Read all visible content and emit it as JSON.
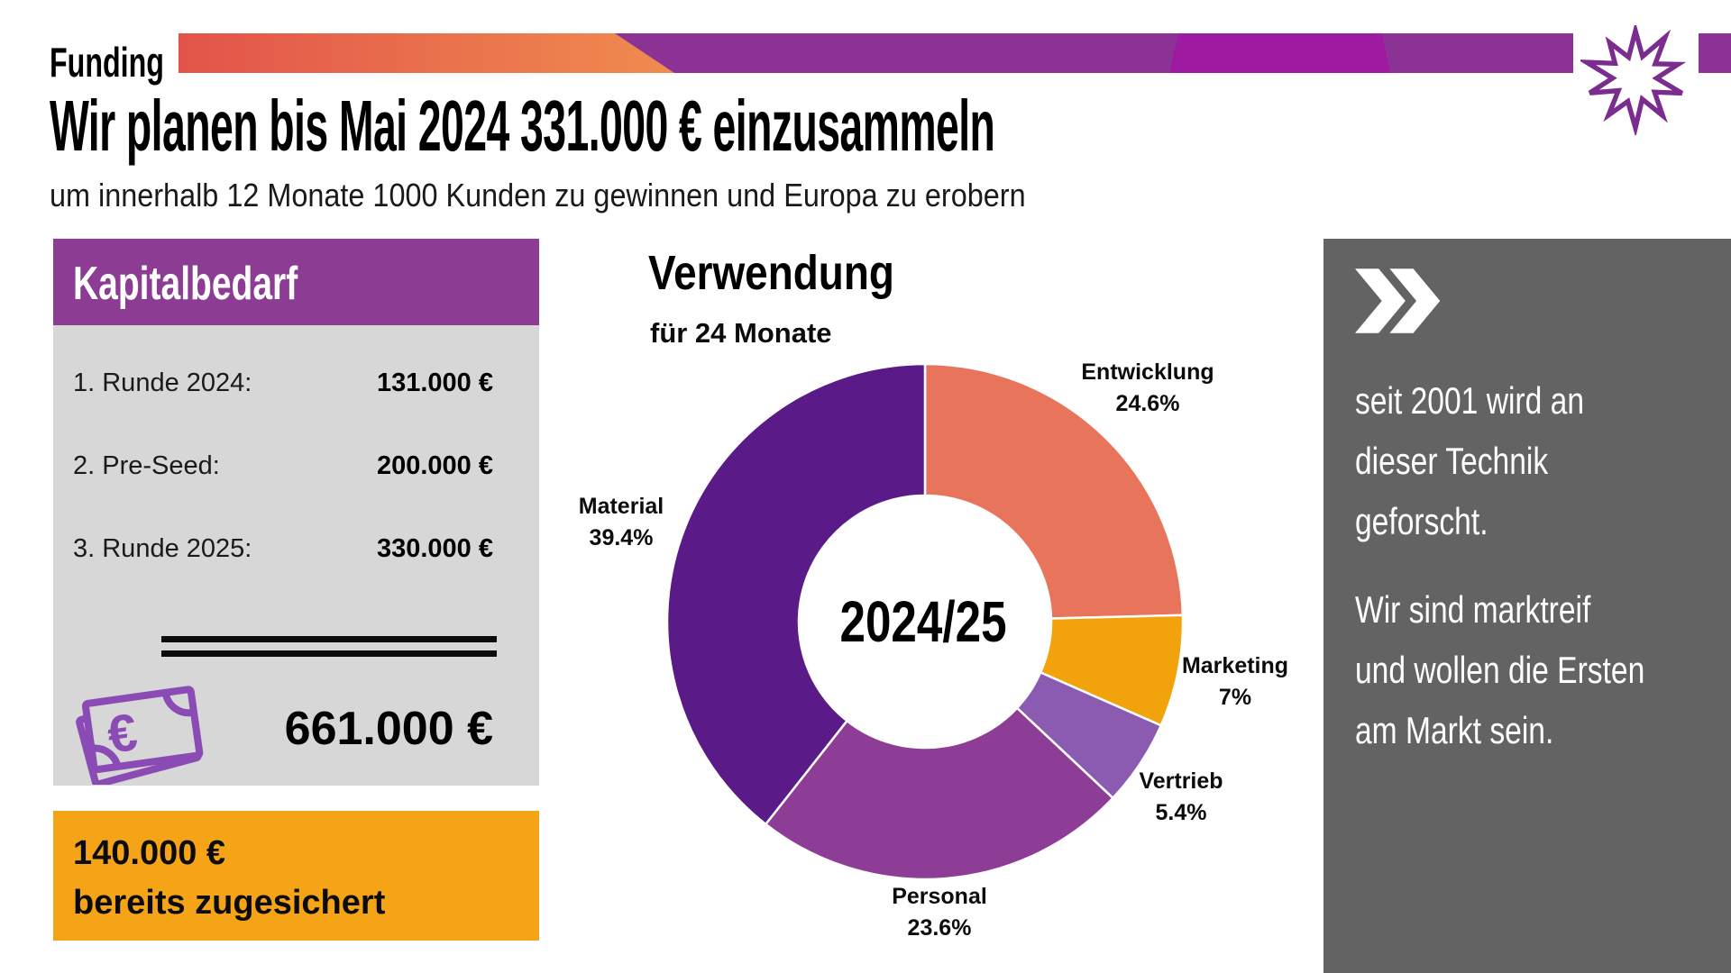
{
  "page": {
    "kicker": "Funding",
    "title": "Wir planen bis Mai 2024 331.000 € einzusammeln",
    "subtitle": "um innerhalb 12 Monate 1000 Kunden zu gewinnen und Europa zu erobern"
  },
  "capital_panel": {
    "title": "Kapitalbedarf",
    "rows": [
      {
        "label": "1. Runde 2024:",
        "value": "131.000 €"
      },
      {
        "label": "2. Pre-Seed:",
        "value": "200.000 €"
      },
      {
        "label": "3. Runde 2025:",
        "value": "330.000 €"
      }
    ],
    "total_value": "661.000 €",
    "header_color": "#8C3D93",
    "body_color": "#D7D7D7"
  },
  "secured_box": {
    "amount": "140.000 €",
    "caption": "bereits zugesichert",
    "background": "#F5A418"
  },
  "chart_data": {
    "type": "pie",
    "variant": "donut",
    "title": "Verwendung",
    "subtitle": "für 24 Monate",
    "center_label": "2024/25",
    "start_angle_deg": 0,
    "direction": "clockwise",
    "legend_position": "outside-labels",
    "segments": [
      {
        "label": "Entwicklung",
        "value": 24.6,
        "pct_label": "24.6%",
        "color": "#E9745C"
      },
      {
        "label": "Marketing",
        "value": 7,
        "pct_label": "7%",
        "color": "#F2A30B"
      },
      {
        "label": "Vertrieb",
        "value": 5.4,
        "pct_label": "5.4%",
        "color": "#8A5BB0"
      },
      {
        "label": "Personal",
        "value": 23.6,
        "pct_label": "23.6%",
        "color": "#8E3D96"
      },
      {
        "label": "Material",
        "value": 39.4,
        "pct_label": "39.4%",
        "color": "#5A1A87"
      }
    ]
  },
  "side_panel": {
    "background": "#636363",
    "paragraph1_lines": [
      "seit 2001 wird an",
      "dieser Technik",
      "geforscht."
    ],
    "paragraph2_lines": [
      "Wir sind marktreif",
      "und wollen die Ersten",
      "am Markt sein."
    ]
  },
  "decor": {
    "bar_orange_start": "#E2544A",
    "bar_orange_end": "#F08B4E",
    "bar_purple": "#8D3295",
    "bar_magenta": "#9E17A2",
    "starburst_outline": "#7B2C8F",
    "money_icon_color": "#8A4CB4"
  }
}
